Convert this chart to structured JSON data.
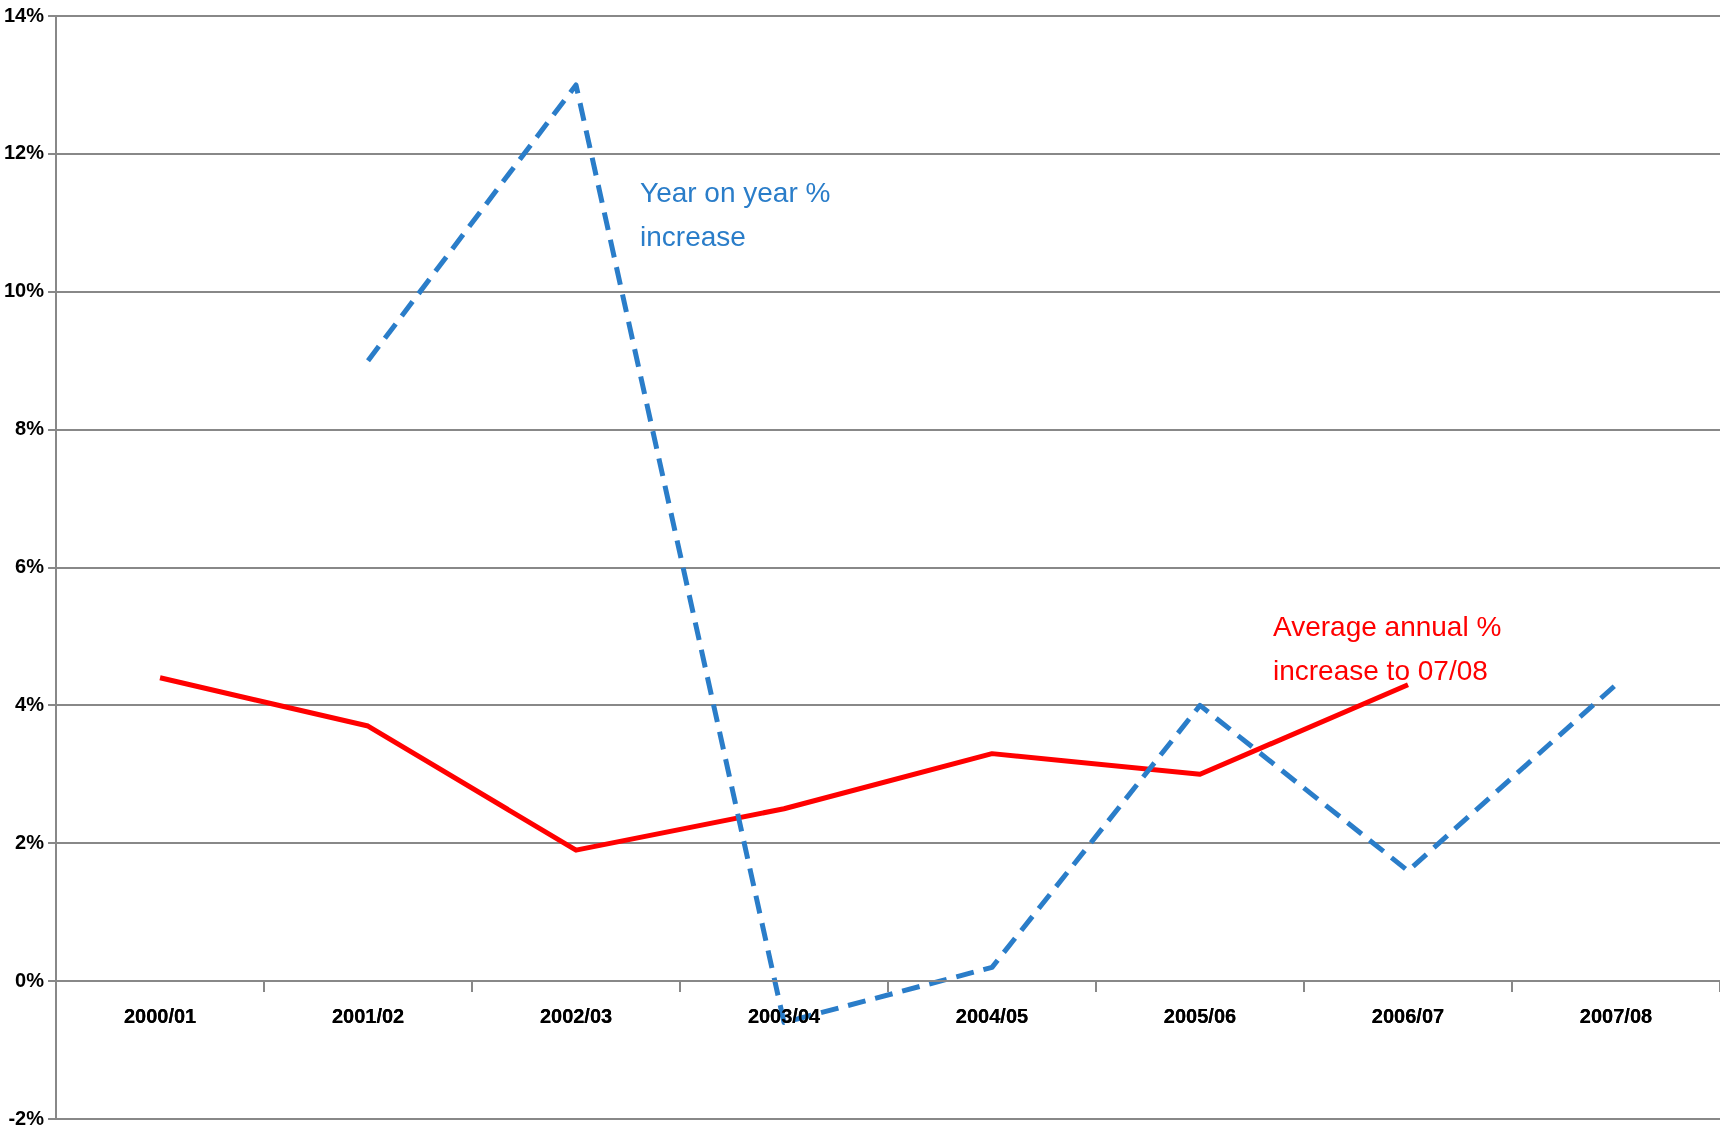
{
  "chart_data": {
    "type": "line",
    "categories": [
      "2000/01",
      "2001/02",
      "2002/03",
      "2003/04",
      "2004/05",
      "2005/06",
      "2006/07",
      "2007/08"
    ],
    "series": [
      {
        "name": "Year on year % increase",
        "color": "#2a7dc9",
        "line_style": "dashed",
        "values": [
          null,
          9.0,
          13.0,
          -0.6,
          0.2,
          4.0,
          1.6,
          4.3
        ]
      },
      {
        "name": "Average annual % increase to 07/08",
        "color": "#ff0000",
        "line_style": "solid",
        "values": [
          4.4,
          3.7,
          1.9,
          2.5,
          3.3,
          3.0,
          4.3,
          null
        ]
      }
    ],
    "ylim": [
      -2,
      14
    ],
    "yticks": [
      {
        "value": -2,
        "label": "-2%"
      },
      {
        "value": 0,
        "label": "0%"
      },
      {
        "value": 2,
        "label": "2%"
      },
      {
        "value": 4,
        "label": "4%"
      },
      {
        "value": 6,
        "label": "6%"
      },
      {
        "value": 8,
        "label": "8%"
      },
      {
        "value": 10,
        "label": "10%"
      },
      {
        "value": 12,
        "label": "12%"
      },
      {
        "value": 14,
        "label": "14%"
      }
    ],
    "grid": "y",
    "legend": false,
    "marker": "none"
  }
}
